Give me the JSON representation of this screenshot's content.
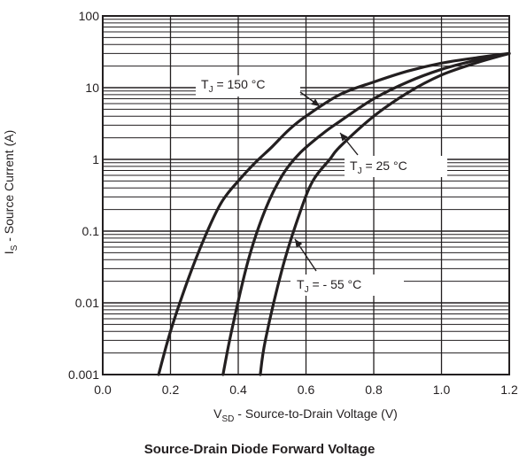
{
  "chart_data": {
    "type": "line",
    "title": "Source-Drain Diode Forward Voltage",
    "xlabel": {
      "main": "V",
      "sub": "SD",
      "rest": " - Source-to-Drain Voltage (V)"
    },
    "ylabel": {
      "main": "I",
      "sub": "S",
      "rest": " - Source Current (A)"
    },
    "xlim": [
      0.0,
      1.2
    ],
    "ylim": [
      0.001,
      100
    ],
    "yscale": "log",
    "grid": true,
    "x_ticks": [
      "0.0",
      "0.2",
      "0.4",
      "0.6",
      "0.8",
      "1.0",
      "1.2"
    ],
    "x_tick_values": [
      0.0,
      0.2,
      0.4,
      0.6,
      0.8,
      1.0,
      1.2
    ],
    "y_ticks": [
      "0.001",
      "0.01",
      "0.1",
      "1",
      "10",
      "100"
    ],
    "y_tick_values": [
      0.001,
      0.01,
      0.1,
      1,
      10,
      100
    ],
    "series": [
      {
        "name": "TJ = 150 °C",
        "label": {
          "main": "T",
          "sub": "J",
          "rest": " = 150 °C"
        },
        "x": [
          0.165,
          0.2,
          0.25,
          0.3,
          0.35,
          0.4,
          0.45,
          0.5,
          0.55,
          0.6,
          0.7,
          0.8,
          0.9,
          1.0,
          1.1,
          1.2
        ],
        "y": [
          0.001,
          0.004,
          0.02,
          0.08,
          0.25,
          0.5,
          0.9,
          1.5,
          2.6,
          4.0,
          8.0,
          12.0,
          17.0,
          22.0,
          26.0,
          30.0
        ]
      },
      {
        "name": "TJ = 25 °C",
        "label": {
          "main": "T",
          "sub": "J",
          "rest": " = 25 °C"
        },
        "x": [
          0.355,
          0.38,
          0.43,
          0.48,
          0.53,
          0.58,
          0.65,
          0.7,
          0.8,
          0.9,
          1.0,
          1.1,
          1.2
        ],
        "y": [
          0.001,
          0.004,
          0.04,
          0.2,
          0.6,
          1.2,
          2.3,
          3.4,
          7.0,
          12.0,
          18.0,
          24.0,
          30.0
        ]
      },
      {
        "name": "TJ = - 55 °C",
        "label": {
          "main": "T",
          "sub": "J",
          "rest": " = - 55 °C"
        },
        "x": [
          0.465,
          0.48,
          0.53,
          0.58,
          0.62,
          0.67,
          0.7,
          0.8,
          0.9,
          1.0,
          1.1,
          1.2
        ],
        "y": [
          0.001,
          0.003,
          0.03,
          0.17,
          0.5,
          1.0,
          1.5,
          4.0,
          8.5,
          15.0,
          22.0,
          30.0
        ]
      }
    ]
  }
}
